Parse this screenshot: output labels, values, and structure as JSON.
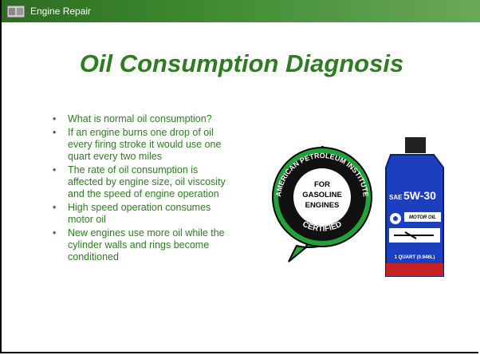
{
  "header": {
    "title": "Engine Repair"
  },
  "slide": {
    "title": "Oil Consumption Diagnosis",
    "bullets": [
      "What is normal oil consumption?",
      "If an engine burns one drop of oil every firing stroke it would use one quart every two miles",
      "The rate of oil consumption is affected by engine size, oil viscosity and the speed of engine operation",
      "High speed operation consumes motor oil",
      "New engines use more oil while the cylinder walls and rings become conditioned"
    ]
  },
  "api_seal": {
    "ring_top": "AMERICAN PETROLEUM INSTITUTE",
    "center": [
      "FOR",
      "GASOLINE",
      "ENGINES"
    ],
    "ring_bottom": "CERTIFIED"
  },
  "oil_bottle": {
    "sae": "SAE",
    "grade": "5W-30",
    "product": "MOTOR OIL",
    "volume": "1 QUART (0.946L)"
  }
}
